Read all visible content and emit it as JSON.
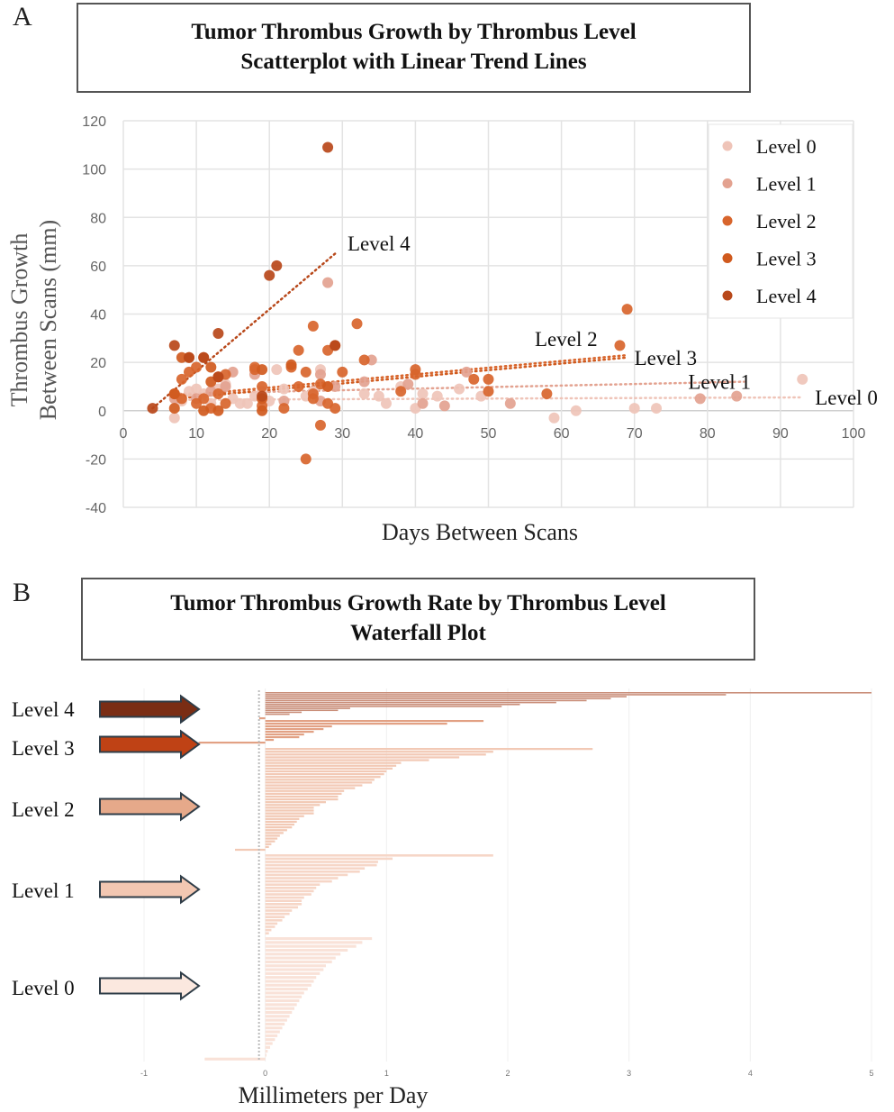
{
  "panel_a": {
    "letter": "A",
    "title_line1": "Tumor Thrombus Growth by Thrombus Level",
    "title_line2": "Scatterplot with Linear Trend Lines"
  },
  "panel_b": {
    "letter": "B",
    "title_line1": "Tumor Thrombus Growth Rate by Thrombus Level",
    "title_line2": "Waterfall Plot"
  },
  "chart_data": [
    {
      "type": "scatter",
      "title": "Tumor Thrombus Growth by Thrombus Level — Scatterplot with Linear Trend Lines",
      "xlabel": "Days Between Scans",
      "ylabel_line1": "Thrombus Growth",
      "ylabel_line2": "Between Scans (mm)",
      "xlim": [
        0,
        100
      ],
      "ylim": [
        -40,
        120
      ],
      "xticks": [
        "0",
        "10",
        "20",
        "30",
        "40",
        "50",
        "60",
        "70",
        "80",
        "90",
        "100"
      ],
      "yticks": [
        "120",
        "100",
        "80",
        "60",
        "40",
        "20",
        "0",
        "-20",
        "-40"
      ],
      "grid": true,
      "legend_position": "top-right",
      "series": [
        {
          "name": "Level 0",
          "color": "#efc4b8",
          "trend_label": "Level 0",
          "trend": [
            [
              7,
              4.5
            ],
            [
              93,
              5.5
            ]
          ],
          "points": [
            [
              7,
              -3
            ],
            [
              8,
              4
            ],
            [
              9,
              8
            ],
            [
              10,
              9
            ],
            [
              11,
              7
            ],
            [
              12,
              3
            ],
            [
              13,
              9
            ],
            [
              14,
              11
            ],
            [
              15,
              5
            ],
            [
              16,
              3
            ],
            [
              17,
              3
            ],
            [
              18,
              6
            ],
            [
              19,
              8
            ],
            [
              20,
              4
            ],
            [
              21,
              17
            ],
            [
              22,
              9
            ],
            [
              25,
              6
            ],
            [
              26,
              8
            ],
            [
              27,
              17
            ],
            [
              28,
              10
            ],
            [
              33,
              7
            ],
            [
              35,
              6
            ],
            [
              36,
              3
            ],
            [
              38,
              10
            ],
            [
              40,
              1
            ],
            [
              41,
              7
            ],
            [
              43,
              6
            ],
            [
              46,
              9
            ],
            [
              49,
              6
            ],
            [
              59,
              -3
            ],
            [
              62,
              0
            ],
            [
              70,
              1
            ],
            [
              73,
              1
            ],
            [
              93,
              13
            ]
          ]
        },
        {
          "name": "Level 1",
          "color": "#e3a290",
          "trend_label": "Level 1",
          "trend": [
            [
              7,
              7
            ],
            [
              85,
              12
            ]
          ],
          "points": [
            [
              7,
              5
            ],
            [
              10,
              5
            ],
            [
              12,
              8
            ],
            [
              14,
              10
            ],
            [
              15,
              16
            ],
            [
              18,
              15
            ],
            [
              22,
              4
            ],
            [
              27,
              4
            ],
            [
              27,
              15
            ],
            [
              28,
              53
            ],
            [
              29,
              10
            ],
            [
              34,
              21
            ],
            [
              33,
              12
            ],
            [
              39,
              11
            ],
            [
              41,
              3
            ],
            [
              44,
              2
            ],
            [
              47,
              16
            ],
            [
              53,
              3
            ],
            [
              79,
              5
            ],
            [
              84,
              6
            ]
          ]
        },
        {
          "name": "Level 2",
          "color": "#d8652c",
          "trend_label": "Level 2",
          "trend": [
            [
              7,
              6
            ],
            [
              69,
              23
            ]
          ],
          "points": [
            [
              7,
              7
            ],
            [
              8,
              5
            ],
            [
              8,
              13
            ],
            [
              9,
              16
            ],
            [
              10,
              18
            ],
            [
              10,
              3
            ],
            [
              11,
              5
            ],
            [
              12,
              1
            ],
            [
              13,
              7
            ],
            [
              14,
              15
            ],
            [
              14,
              3
            ],
            [
              18,
              17
            ],
            [
              18,
              18
            ],
            [
              19,
              10
            ],
            [
              19,
              2
            ],
            [
              22,
              1
            ],
            [
              23,
              18
            ],
            [
              24,
              25
            ],
            [
              24,
              10
            ],
            [
              25,
              16
            ],
            [
              26,
              35
            ],
            [
              26,
              7
            ],
            [
              26,
              5
            ],
            [
              27,
              -6
            ],
            [
              27,
              11
            ],
            [
              28,
              25
            ],
            [
              28,
              3
            ],
            [
              29,
              1
            ],
            [
              30,
              16
            ],
            [
              32,
              36
            ],
            [
              33,
              21
            ],
            [
              38,
              8
            ],
            [
              40,
              17
            ],
            [
              40,
              15
            ],
            [
              48,
              13
            ],
            [
              50,
              13
            ],
            [
              50,
              8
            ],
            [
              58,
              7
            ],
            [
              68,
              27
            ],
            [
              69,
              42
            ],
            [
              25,
              -20
            ]
          ]
        },
        {
          "name": "Level 3",
          "color": "#d05a1e",
          "trend_label": "Level 3",
          "trend": [
            [
              7,
              5
            ],
            [
              69,
              22
            ]
          ],
          "points": [
            [
              7,
              7
            ],
            [
              7,
              1
            ],
            [
              8,
              22
            ],
            [
              9,
              22
            ],
            [
              11,
              22
            ],
            [
              11,
              0
            ],
            [
              12,
              18
            ],
            [
              12,
              12
            ],
            [
              13,
              0
            ],
            [
              13,
              14
            ],
            [
              19,
              5
            ],
            [
              19,
              0
            ],
            [
              19,
              17
            ],
            [
              23,
              19
            ],
            [
              28,
              10
            ],
            [
              29,
              27
            ]
          ]
        },
        {
          "name": "Level 4",
          "color": "#b8481a",
          "trend_label": "Level 4",
          "trend": [
            [
              4,
              1
            ],
            [
              29,
              65
            ]
          ],
          "points": [
            [
              4,
              1
            ],
            [
              7,
              27
            ],
            [
              9,
              22
            ],
            [
              11,
              22
            ],
            [
              13,
              32
            ],
            [
              13,
              14
            ],
            [
              19,
              6
            ],
            [
              20,
              56
            ],
            [
              21,
              60
            ],
            [
              28,
              109
            ],
            [
              29,
              27
            ]
          ]
        }
      ]
    },
    {
      "type": "bar",
      "orientation": "horizontal",
      "title": "Tumor Thrombus Growth Rate by Thrombus Level — Waterfall Plot",
      "xlabel": "Millimeters per Day",
      "xlim": [
        -1,
        5
      ],
      "xticks": [
        "-1",
        "0",
        "1",
        "2",
        "3",
        "4",
        "5"
      ],
      "groups": [
        {
          "name": "Level 4",
          "color": "#7a2d14",
          "bar_color": "#c98d78",
          "values": [
            5.0,
            3.8,
            2.98,
            2.85,
            2.65,
            2.4,
            2.1,
            1.95,
            0.7,
            0.6,
            0.3,
            0.2
          ]
        },
        {
          "name": "Level 3",
          "color": "#bf4215",
          "bar_color": "#e2a184",
          "values": [
            -0.05,
            1.8,
            1.5,
            0.55,
            0.48,
            0.4,
            0.32,
            0.28,
            0.07,
            -0.55
          ]
        },
        {
          "name": "Level 2",
          "color": "#e6a98a",
          "bar_color": "#f2c9b5",
          "values": [
            2.7,
            1.88,
            1.82,
            1.6,
            1.35,
            1.12,
            1.08,
            1.05,
            1.0,
            0.98,
            0.95,
            0.9,
            0.88,
            0.8,
            0.74,
            0.65,
            0.63,
            0.6,
            0.6,
            0.5,
            0.45,
            0.4,
            0.4,
            0.4,
            0.32,
            0.28,
            0.26,
            0.24,
            0.22,
            0.18,
            0.15,
            0.12,
            0.1,
            0.08,
            0.05,
            0.03,
            -0.25
          ]
        },
        {
          "name": "Level 1",
          "color": "#f2c7b2",
          "bar_color": "#f6d6c7",
          "values": [
            1.88,
            1.05,
            0.93,
            0.92,
            0.82,
            0.78,
            0.68,
            0.6,
            0.55,
            0.45,
            0.42,
            0.4,
            0.38,
            0.32,
            0.3,
            0.3,
            0.27,
            0.22,
            0.2,
            0.16,
            0.14,
            0.1,
            0.08,
            0.05,
            0.03
          ]
        },
        {
          "name": "Level 0",
          "color": "#fbe8df",
          "bar_color": "#f9e2d8",
          "values": [
            0.88,
            0.8,
            0.75,
            0.68,
            0.62,
            0.58,
            0.55,
            0.5,
            0.48,
            0.45,
            0.42,
            0.4,
            0.38,
            0.35,
            0.32,
            0.3,
            0.28,
            0.26,
            0.24,
            0.22,
            0.2,
            0.18,
            0.16,
            0.14,
            0.12,
            0.1,
            0.08,
            0.06,
            0.04,
            0.02,
            0.01,
            -0.5
          ]
        }
      ]
    }
  ]
}
